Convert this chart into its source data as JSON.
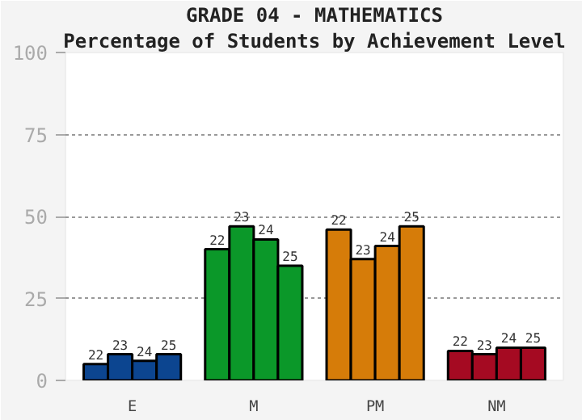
{
  "chart_data": {
    "type": "bar",
    "title": "GRADE 04 - MATHEMATICS",
    "subtitle": "Percentage of Students by Achievement Level",
    "categories": [
      "E",
      "M",
      "PM",
      "NM"
    ],
    "series": [
      {
        "name": "22",
        "colors": [
          "#0c4590",
          "#0b9829",
          "#d67c09",
          "#a50a22"
        ],
        "values": [
          5,
          40,
          46,
          9
        ]
      },
      {
        "name": "23",
        "colors": [
          "#0c4590",
          "#0b9829",
          "#d67c09",
          "#a50a22"
        ],
        "values": [
          8,
          47,
          37,
          8
        ]
      },
      {
        "name": "24",
        "colors": [
          "#0c4590",
          "#0b9829",
          "#d67c09",
          "#a50a22"
        ],
        "values": [
          6,
          43,
          41,
          10
        ]
      },
      {
        "name": "25",
        "colors": [
          "#0c4590",
          "#0b9829",
          "#d67c09",
          "#a50a22"
        ],
        "values": [
          8,
          35,
          47,
          10
        ]
      }
    ],
    "ylim": [
      0,
      100
    ],
    "yticks": [
      0,
      25,
      50,
      75,
      100
    ],
    "grid": "y"
  }
}
